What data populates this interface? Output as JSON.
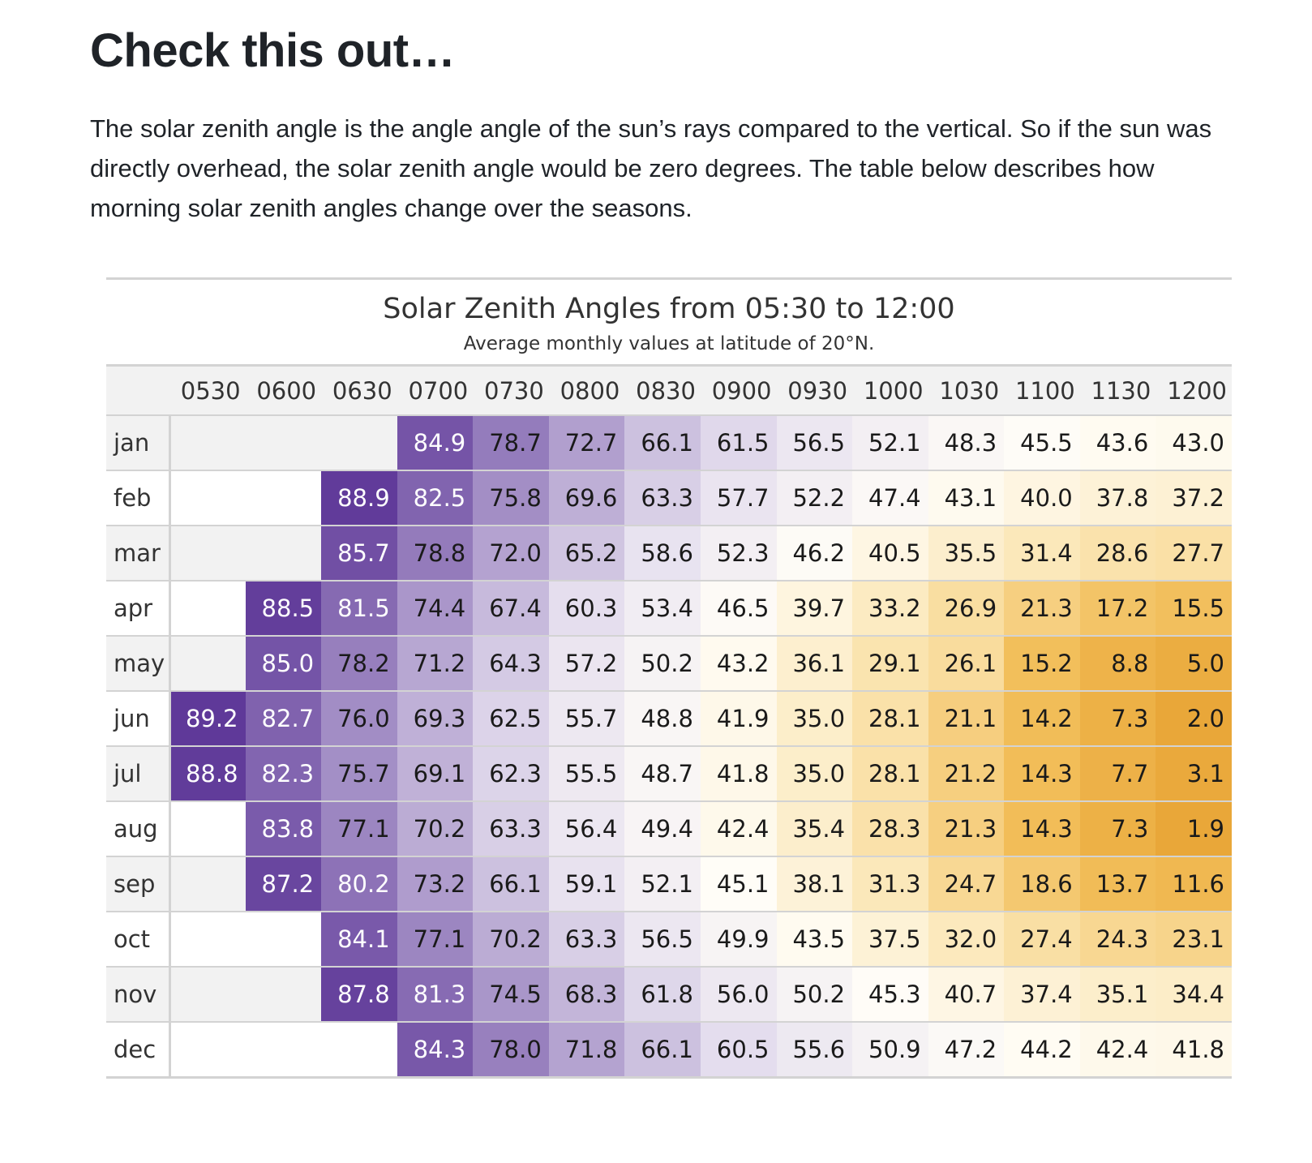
{
  "article": {
    "heading": "Check this out…",
    "intro": "The solar zenith angle is the angle angle of the sun’s rays compared to the vertical. So if the sun was directly overhead, the solar zenith angle would be zero degrees. The table below describes how morning solar zenith angles change over the seasons."
  },
  "chart_data": {
    "type": "heatmap",
    "title": "Solar Zenith Angles from 05:30 to 12:00",
    "subtitle": "Average monthly values at latitude of 20°N.",
    "columns": [
      "0530",
      "0600",
      "0630",
      "0700",
      "0730",
      "0800",
      "0830",
      "0900",
      "0930",
      "1000",
      "1030",
      "1100",
      "1130",
      "1200"
    ],
    "rows": [
      "jan",
      "feb",
      "mar",
      "apr",
      "may",
      "jun",
      "jul",
      "aug",
      "sep",
      "oct",
      "nov",
      "dec"
    ],
    "values": [
      [
        null,
        null,
        null,
        84.9,
        78.7,
        72.7,
        66.1,
        61.5,
        56.5,
        52.1,
        48.3,
        45.5,
        43.6,
        43.0
      ],
      [
        null,
        null,
        88.9,
        82.5,
        75.8,
        69.6,
        63.3,
        57.7,
        52.2,
        47.4,
        43.1,
        40.0,
        37.8,
        37.2
      ],
      [
        null,
        null,
        85.7,
        78.8,
        72.0,
        65.2,
        58.6,
        52.3,
        46.2,
        40.5,
        35.5,
        31.4,
        28.6,
        27.7
      ],
      [
        null,
        88.5,
        81.5,
        74.4,
        67.4,
        60.3,
        53.4,
        46.5,
        39.7,
        33.2,
        26.9,
        21.3,
        17.2,
        15.5
      ],
      [
        null,
        85.0,
        78.2,
        71.2,
        64.3,
        57.2,
        50.2,
        43.2,
        36.1,
        29.1,
        26.1,
        15.2,
        8.8,
        5.0
      ],
      [
        89.2,
        82.7,
        76.0,
        69.3,
        62.5,
        55.7,
        48.8,
        41.9,
        35.0,
        28.1,
        21.1,
        14.2,
        7.3,
        2.0
      ],
      [
        88.8,
        82.3,
        75.7,
        69.1,
        62.3,
        55.5,
        48.7,
        41.8,
        35.0,
        28.1,
        21.2,
        14.3,
        7.7,
        3.1
      ],
      [
        null,
        83.8,
        77.1,
        70.2,
        63.3,
        56.4,
        49.4,
        42.4,
        35.4,
        28.3,
        21.3,
        14.3,
        7.3,
        1.9
      ],
      [
        null,
        87.2,
        80.2,
        73.2,
        66.1,
        59.1,
        52.1,
        45.1,
        38.1,
        31.3,
        24.7,
        18.6,
        13.7,
        11.6
      ],
      [
        null,
        null,
        84.1,
        77.1,
        70.2,
        63.3,
        56.5,
        49.9,
        43.5,
        37.5,
        32.0,
        27.4,
        24.3,
        23.1
      ],
      [
        null,
        null,
        87.8,
        81.3,
        74.5,
        68.3,
        61.8,
        56.0,
        50.2,
        45.3,
        40.7,
        37.4,
        35.1,
        34.4
      ],
      [
        null,
        null,
        null,
        84.3,
        78.0,
        71.8,
        66.1,
        60.5,
        55.6,
        50.9,
        47.2,
        44.2,
        42.4,
        41.8
      ]
    ],
    "color_scale": {
      "domain": [
        0,
        90
      ],
      "stops": [
        "#e8a434",
        "#f2be5a",
        "#fbe6b4",
        "#fffdf7",
        "#e6e0ef",
        "#a793c8",
        "#5b3496"
      ]
    },
    "stub_colors": {
      "even": "#f2f2f2",
      "odd": "#ffffff"
    }
  }
}
